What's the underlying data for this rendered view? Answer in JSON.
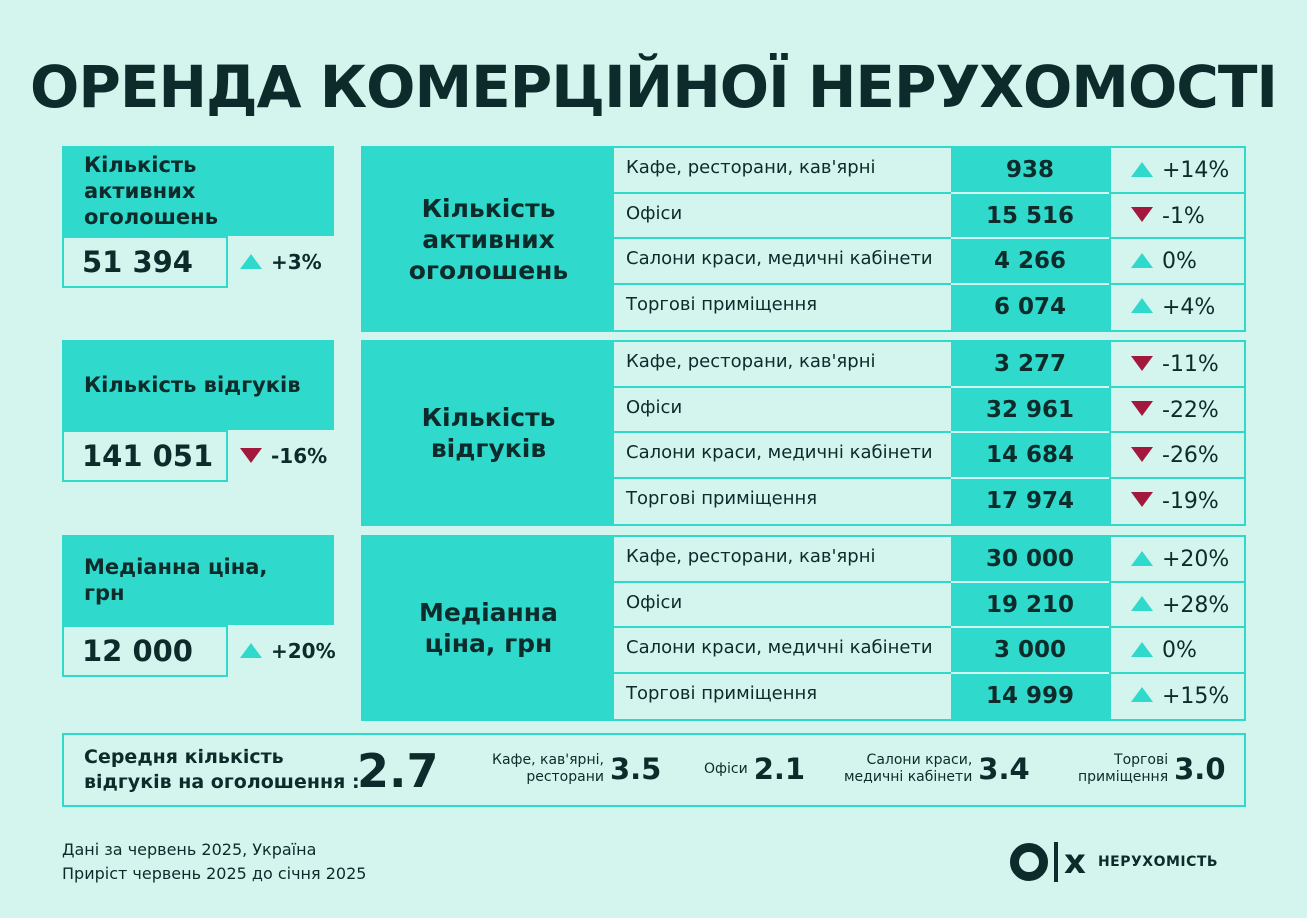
{
  "title": "ОРЕНДА КОМЕРЦІЙНОЇ НЕРУХОМОСТІ",
  "colors": {
    "accent": "#2fd9cb",
    "background": "#d3f5ee",
    "text": "#0c2b2a",
    "down": "#a3193d"
  },
  "summary": [
    {
      "label": "Кількість активних оголошень",
      "value": "51 394",
      "trend": "up",
      "change": "+3%"
    },
    {
      "label": "Кількість відгуків",
      "value": "141 051",
      "trend": "down",
      "change": "-16%"
    },
    {
      "label": "Медіанна ціна, грн",
      "value": "12 000",
      "trend": "up",
      "change": "+20%"
    }
  ],
  "tables": [
    {
      "label": "Кількість активних оголошень",
      "rows": [
        {
          "category": "Кафе, ресторани, кав'ярні",
          "value": "938",
          "trend": "up",
          "change": "+14%"
        },
        {
          "category": "Офіси",
          "value": "15 516",
          "trend": "down",
          "change": "-1%"
        },
        {
          "category": "Салони краси, медичні кабінети",
          "value": "4 266",
          "trend": "up",
          "change": "0%"
        },
        {
          "category": "Торгові приміщення",
          "value": "6 074",
          "trend": "up",
          "change": "+4%"
        }
      ]
    },
    {
      "label": "Кількість відгуків",
      "rows": [
        {
          "category": "Кафе, ресторани, кав'ярні",
          "value": "3 277",
          "trend": "down",
          "change": "-11%"
        },
        {
          "category": "Офіси",
          "value": "32 961",
          "trend": "down",
          "change": "-22%"
        },
        {
          "category": "Салони краси, медичні кабінети",
          "value": "14 684",
          "trend": "down",
          "change": "-26%"
        },
        {
          "category": "Торгові приміщення",
          "value": "17 974",
          "trend": "down",
          "change": "-19%"
        }
      ]
    },
    {
      "label": "Медіанна ціна, грн",
      "rows": [
        {
          "category": "Кафе, ресторани, кав'ярні",
          "value": "30 000",
          "trend": "up",
          "change": "+20%"
        },
        {
          "category": "Офіси",
          "value": "19 210",
          "trend": "up",
          "change": "+28%"
        },
        {
          "category": "Салони краси, медичні кабінети",
          "value": "3 000",
          "trend": "up",
          "change": "0%"
        },
        {
          "category": "Торгові приміщення",
          "value": "14 999",
          "trend": "up",
          "change": "+15%"
        }
      ]
    }
  ],
  "average": {
    "label_line1": "Середня кількість",
    "label_line2": "відгуків на оголошення :",
    "value": "2.7",
    "items": [
      {
        "label_line1": "Кафе, кав'ярні,",
        "label_line2": "ресторани",
        "value": "3.5"
      },
      {
        "label_line1": "Офіси",
        "label_line2": "",
        "value": "2.1"
      },
      {
        "label_line1": "Салони краси,",
        "label_line2": "медичні кабінети",
        "value": "3.4"
      },
      {
        "label_line1": "Торгові",
        "label_line2": "приміщення",
        "value": "3.0"
      }
    ]
  },
  "footer": {
    "line1": "Дані за червень 2025, Україна",
    "line2": "Приріст червень 2025 до січня 2025"
  },
  "logo": {
    "brand": "OLX",
    "x_glyph": "x",
    "text": "НЕРУХОМІСТЬ"
  }
}
